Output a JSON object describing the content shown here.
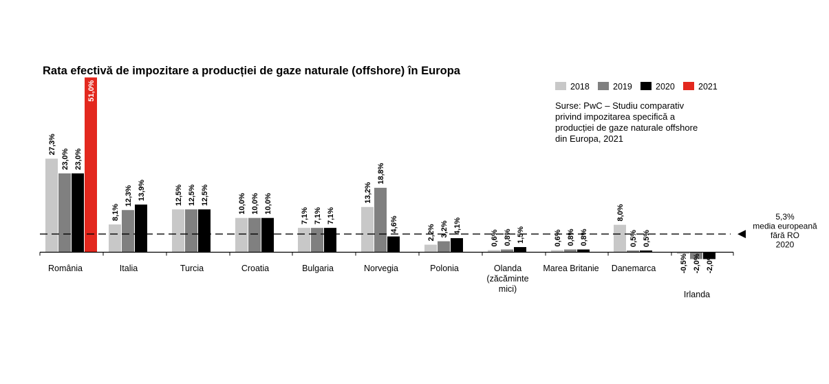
{
  "chart_data": {
    "type": "bar",
    "title": "Rata efectivă de impozitare a producției de gaze naturale (offshore) în Europa",
    "source_lines": [
      "Surse: PwC – Studiu comparativ",
      "privind impozitarea specifică a",
      "producției de gaze naturale offshore",
      "din Europa, 2021"
    ],
    "legend_position": "top-right",
    "grid": false,
    "ylim": [
      -2.5,
      51
    ],
    "categories": [
      [
        "România"
      ],
      [
        "Italia"
      ],
      [
        "Turcia"
      ],
      [
        "Croatia"
      ],
      [
        "Bulgaria"
      ],
      [
        "Norvegia"
      ],
      [
        "Polonia"
      ],
      [
        "Olanda",
        "(zăcăminte",
        "mici)"
      ],
      [
        "Marea Britanie"
      ],
      [
        "Danemarca"
      ],
      [
        "Irlanda"
      ]
    ],
    "series": [
      {
        "name": "2018",
        "color": "#c8c8c8",
        "values": [
          27.3,
          8.1,
          12.5,
          10.0,
          7.1,
          13.2,
          2.2,
          0.6,
          0.6,
          8.0,
          -0.5
        ],
        "labels": [
          "27,3%",
          "8,1%",
          "12,5%",
          "10,0%",
          "7,1%",
          "13,2%",
          "2,2%",
          "0,6%",
          "0,6%",
          "8,0%",
          "-0,5%"
        ]
      },
      {
        "name": "2019",
        "color": "#808080",
        "values": [
          23.0,
          12.3,
          12.5,
          10.0,
          7.1,
          18.8,
          3.2,
          0.8,
          0.8,
          0.5,
          -2.0
        ],
        "labels": [
          "23,0%",
          "12,3%",
          "12,5%",
          "10,0%",
          "7,1%",
          "18,8%",
          "3,2%",
          "0,8%",
          "0,8%",
          "0,5%",
          "-2,0%"
        ]
      },
      {
        "name": "2020",
        "color": "#000000",
        "values": [
          23.0,
          13.9,
          12.5,
          10.0,
          7.1,
          4.6,
          4.1,
          1.5,
          0.8,
          0.5,
          -2.0
        ],
        "labels": [
          "23,0%",
          "13,9%",
          "12,5%",
          "10,0%",
          "7,1%",
          "4,6%",
          "4,1%",
          "1,5%",
          "0,8%",
          "0,5%",
          "-2,0%"
        ]
      },
      {
        "name": "2021",
        "color": "#e3281e",
        "values": [
          51.0,
          null,
          null,
          null,
          null,
          null,
          null,
          null,
          null,
          null,
          null
        ],
        "labels": [
          "51,0%",
          null,
          null,
          null,
          null,
          null,
          null,
          null,
          null,
          null,
          null
        ]
      }
    ],
    "reference_line": {
      "value": 5.3,
      "label_lines": [
        "5,3%",
        "media europeană",
        "fără RO",
        "2020"
      ]
    }
  }
}
